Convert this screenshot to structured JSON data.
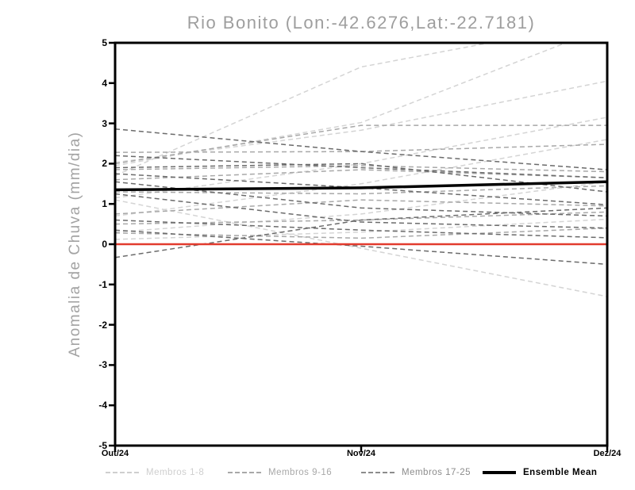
{
  "chart": {
    "title": "Rio Bonito (Lon:-42.6276,Lat:-22.7181)",
    "ylabel": "Anomalia de Chuva (mm/dia)"
  },
  "colors": {
    "members_1_8": "#d4d4d4",
    "members_9_16": "#a8a8a8",
    "members_17_25": "#6b6b6b",
    "ensemble_mean": "#000000",
    "zero_line": "#e23b2e",
    "frame": "#000000",
    "title_text": "#9e9e9e"
  },
  "chart_data": {
    "type": "line",
    "title": "Rio Bonito (Lon:-42.6276,Lat:-22.7181)",
    "xlabel": "",
    "ylabel": "Anomalia de Chuva (mm/dia)",
    "x_categories": [
      "Out/24",
      "Nov/24",
      "Dez/24"
    ],
    "ylim": [
      -5,
      5
    ],
    "yticks": [
      "5",
      "4",
      "3",
      "2",
      "1",
      "0",
      "-1",
      "-2",
      "-3",
      "-4",
      "-5"
    ],
    "ytick_values": [
      5,
      4,
      3,
      2,
      1,
      0,
      -1,
      -2,
      -3,
      -4,
      -5
    ],
    "grid": false,
    "legend_position": "bottom",
    "series": [
      {
        "name": "Membros 1-8",
        "color": "#d4d4d4",
        "style": "dashed",
        "width": 1.5,
        "in_legend": true,
        "members": [
          [
            1.7,
            4.4,
            5.55
          ],
          [
            1.95,
            3.02,
            5.4
          ],
          [
            2.03,
            2.83,
            4.05
          ],
          [
            1.15,
            2.0,
            3.15
          ],
          [
            0.7,
            1.5,
            2.6
          ],
          [
            1.1,
            -0.1,
            -1.3
          ],
          [
            0.3,
            0.75,
            1.55
          ],
          [
            0.12,
            0.3,
            0.62
          ]
        ]
      },
      {
        "name": "Membros 9-16",
        "color": "#a8a8a8",
        "style": "dashed",
        "width": 1.5,
        "in_legend": true,
        "members": [
          [
            2.28,
            2.3,
            2.48
          ],
          [
            2.0,
            2.95,
            2.95
          ],
          [
            1.85,
            1.95,
            1.8
          ],
          [
            1.6,
            1.85,
            1.65
          ],
          [
            1.3,
            1.25,
            1.45
          ],
          [
            0.75,
            1.1,
            0.95
          ],
          [
            0.5,
            0.6,
            0.8
          ],
          [
            0.28,
            0.15,
            0.4
          ]
        ]
      },
      {
        "name": "Membros 17-25",
        "color": "#6b6b6b",
        "style": "dashed",
        "width": 1.5,
        "in_legend": true,
        "members": [
          [
            2.86,
            2.3,
            1.85
          ],
          [
            2.2,
            1.9,
            1.65
          ],
          [
            1.9,
            2.0,
            1.3
          ],
          [
            1.75,
            1.4,
            0.98
          ],
          [
            1.55,
            0.9,
            0.7
          ],
          [
            1.25,
            0.55,
            0.4
          ],
          [
            0.6,
            0.35,
            0.16
          ],
          [
            0.35,
            -0.05,
            -0.5
          ],
          [
            -0.33,
            0.6,
            0.9
          ]
        ]
      },
      {
        "name": "zero-reference",
        "color": "#e23b2e",
        "style": "solid",
        "width": 2.5,
        "in_legend": false,
        "members": [
          [
            0,
            0,
            0
          ]
        ]
      },
      {
        "name": "Ensemble Mean",
        "color": "#000000",
        "style": "solid",
        "width": 3.5,
        "in_legend": true,
        "members": [
          [
            1.35,
            1.4,
            1.55
          ]
        ]
      }
    ]
  },
  "legend": {
    "items": [
      {
        "label": "Membros 1-8",
        "swatch_color": "#cfcfcf",
        "text_color": "#cfcfcf",
        "style": "dashed",
        "bold": false
      },
      {
        "label": "Membros 9-16",
        "swatch_color": "#a8a8a8",
        "text_color": "#a8a8a8",
        "style": "dashed",
        "bold": false
      },
      {
        "label": "Membros 17-25",
        "swatch_color": "#8c8c8c",
        "text_color": "#8c8c8c",
        "style": "dashed",
        "bold": false
      },
      {
        "label": "Ensemble Mean",
        "swatch_color": "#000000",
        "text_color": "#000000",
        "style": "solid",
        "bold": true
      }
    ]
  }
}
